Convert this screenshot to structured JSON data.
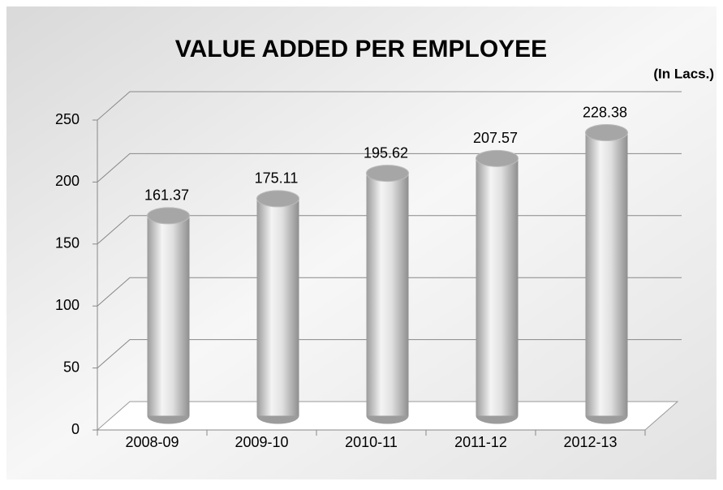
{
  "chart_data": {
    "type": "bar3d",
    "title": "VALUE ADDED PER EMPLOYEE",
    "subtitle": "(In Lacs.)",
    "categories": [
      "2008-09",
      "2009-10",
      "2010-11",
      "2011-12",
      "2012-13"
    ],
    "values": [
      161.37,
      175.11,
      195.62,
      207.57,
      228.38
    ],
    "color": "#c8c8c8",
    "ylim": [
      0,
      250
    ],
    "yticks": [
      0,
      50,
      100,
      150,
      200,
      250
    ],
    "grid": true
  }
}
